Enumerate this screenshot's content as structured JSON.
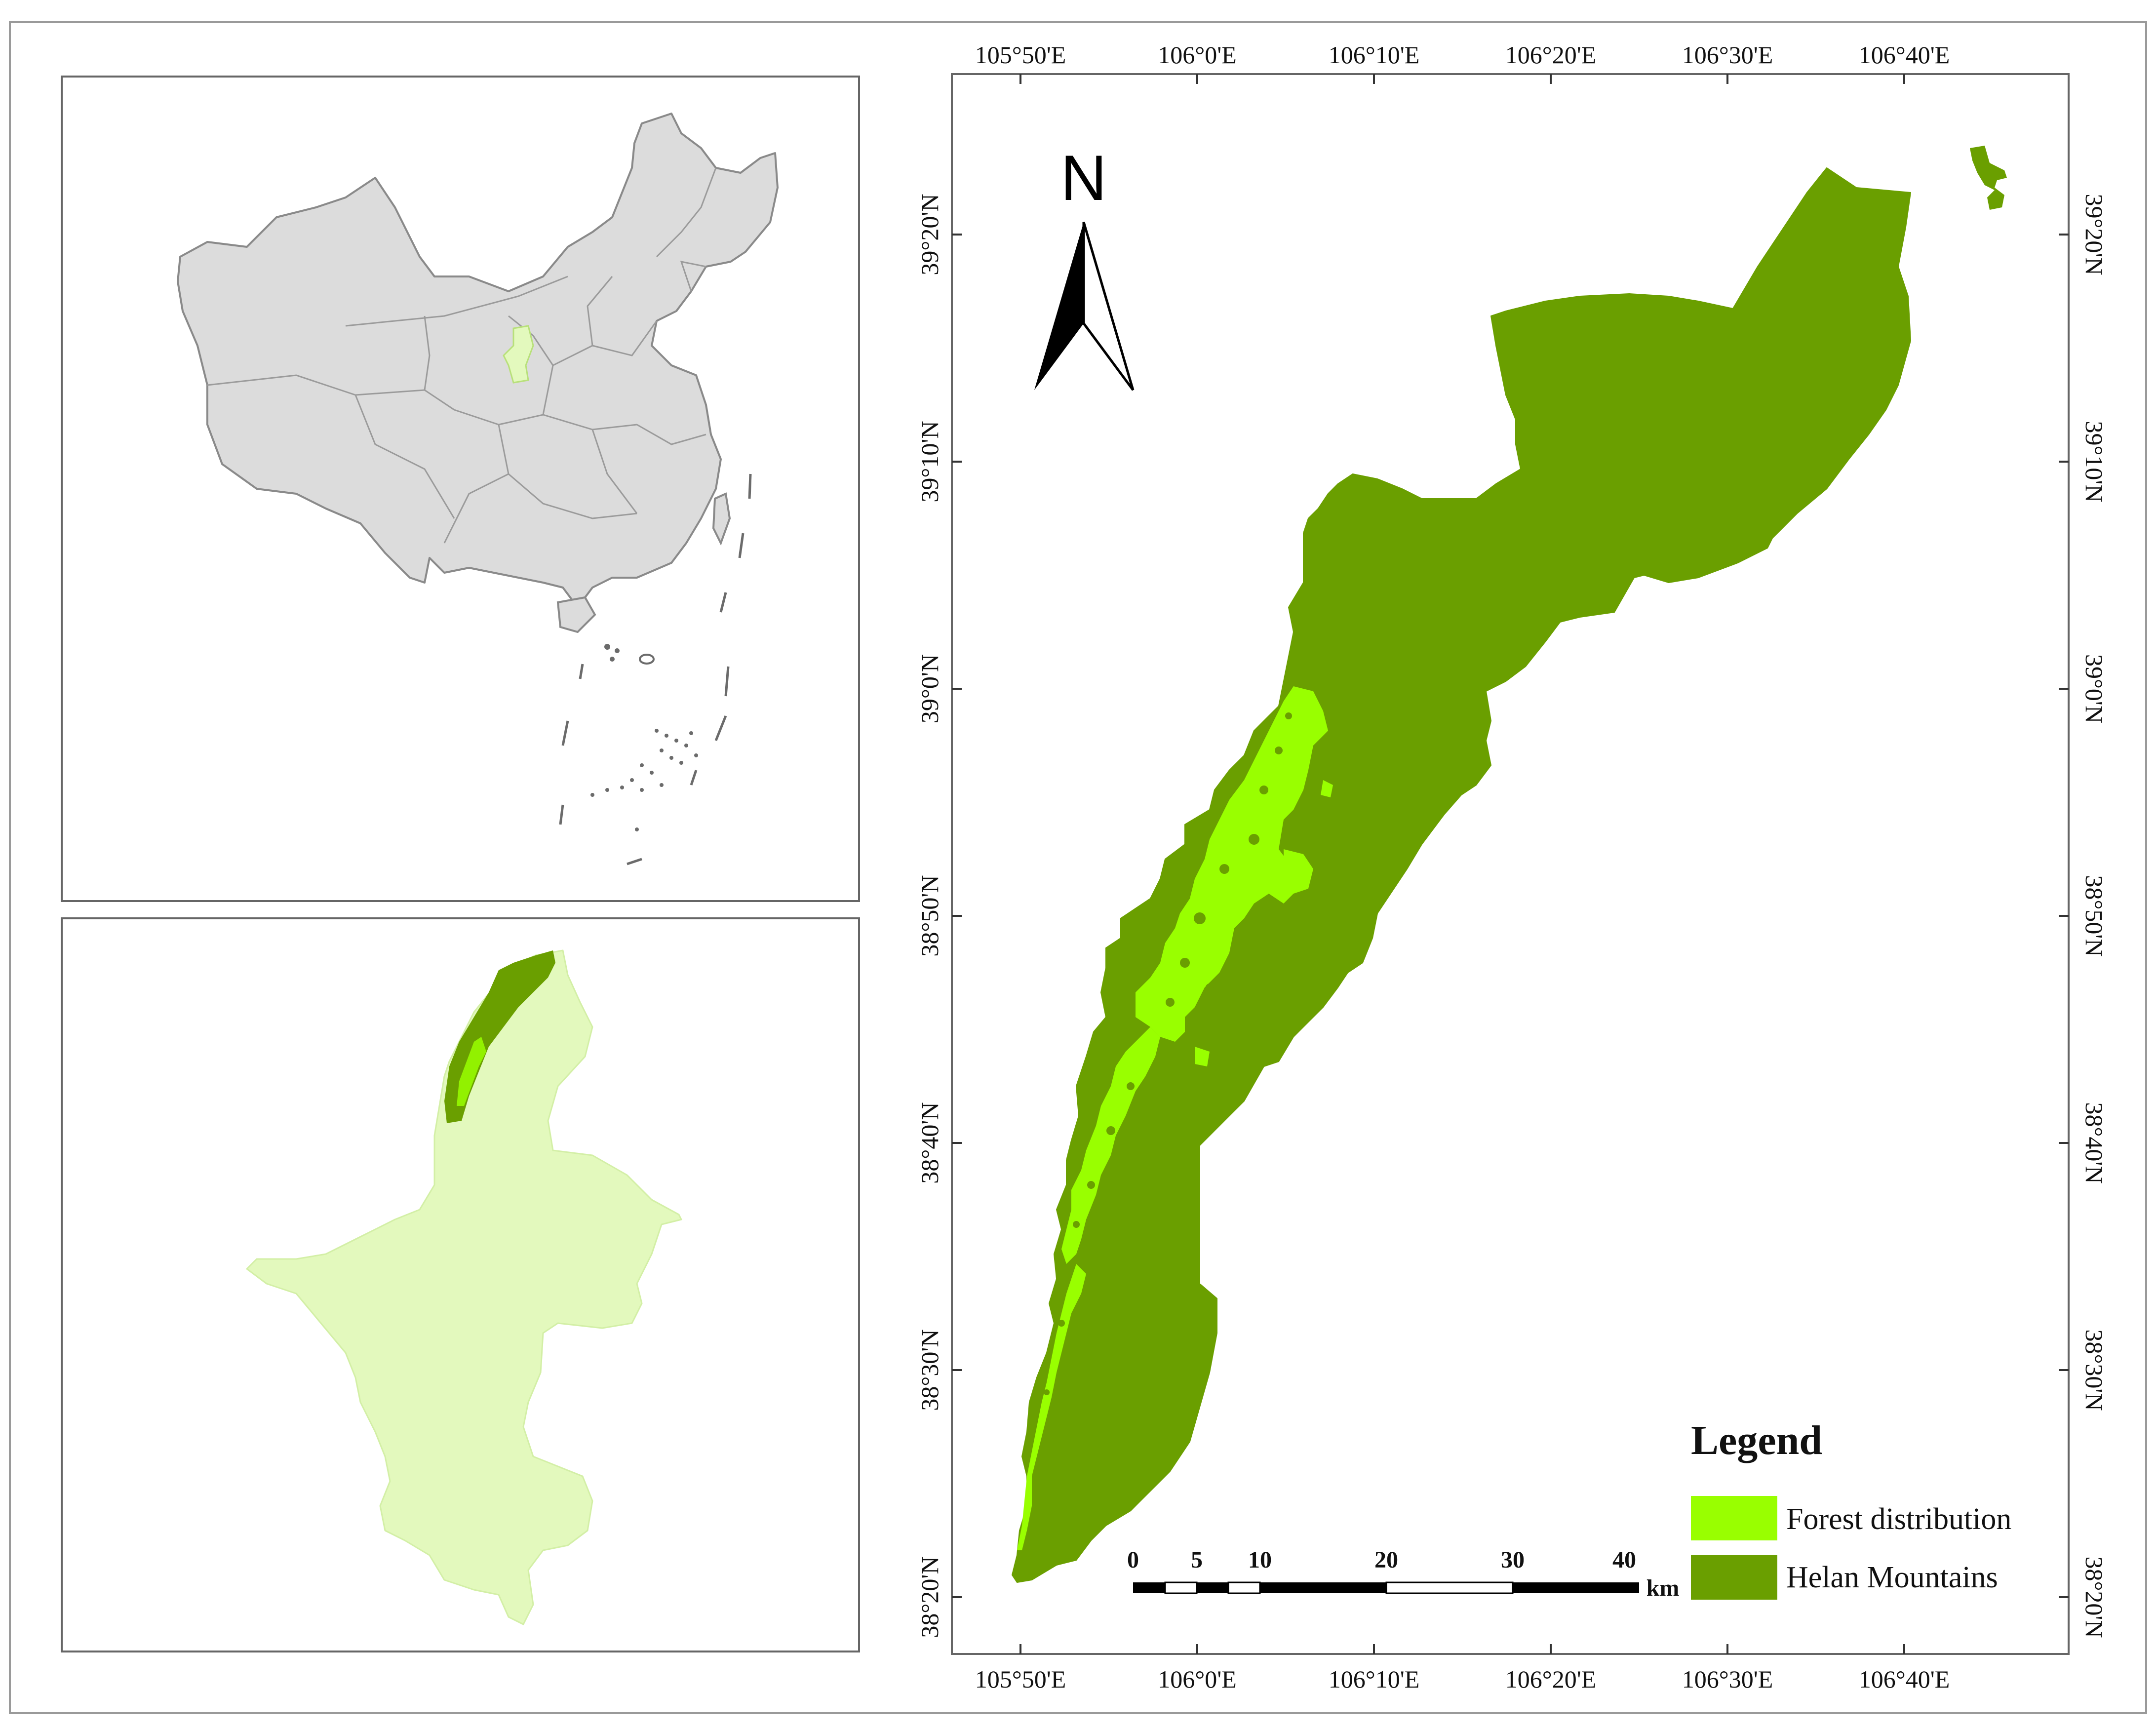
{
  "overview_map": {
    "panel_name": "china-overview",
    "highlight_region": "Ningxia"
  },
  "province_map": {
    "panel_name": "ningxia-province-map"
  },
  "main_map": {
    "top_longitude_labels": [
      "105°50'E",
      "106°0'E",
      "106°10'E",
      "106°20'E",
      "106°30'E",
      "106°40'E"
    ],
    "bottom_longitude_labels": [
      "105°50'E",
      "106°0'E",
      "106°10'E",
      "106°20'E",
      "106°30'E",
      "106°40'E"
    ],
    "left_latitude_labels": [
      "39°20'N",
      "39°10'N",
      "39°0'N",
      "38°50'N",
      "38°40'N",
      "38°30'N",
      "38°20'N"
    ],
    "right_latitude_labels": [
      "39°20'N",
      "39°10'N",
      "39°0'N",
      "38°50'N",
      "38°40'N",
      "38°30'N",
      "38°20'N"
    ],
    "north_arrow_label": "N",
    "scale_bar": {
      "ticks": [
        "0",
        "5",
        "10",
        "20",
        "30",
        "40"
      ],
      "unit": "km"
    },
    "legend": {
      "title": "Legend",
      "items": [
        {
          "label": "Forest distribution",
          "color": "#99ff00"
        },
        {
          "label": "Helan Mountains",
          "color": "#6a9f00"
        }
      ]
    }
  },
  "colors": {
    "china_fill": "#dcdcdc",
    "china_stroke": "#8a8a8a",
    "ningxia_fill": "#e3f9bd",
    "helan_fill": "#6a9f00",
    "forest_fill": "#99ff00",
    "frame_stroke": "#666666"
  }
}
